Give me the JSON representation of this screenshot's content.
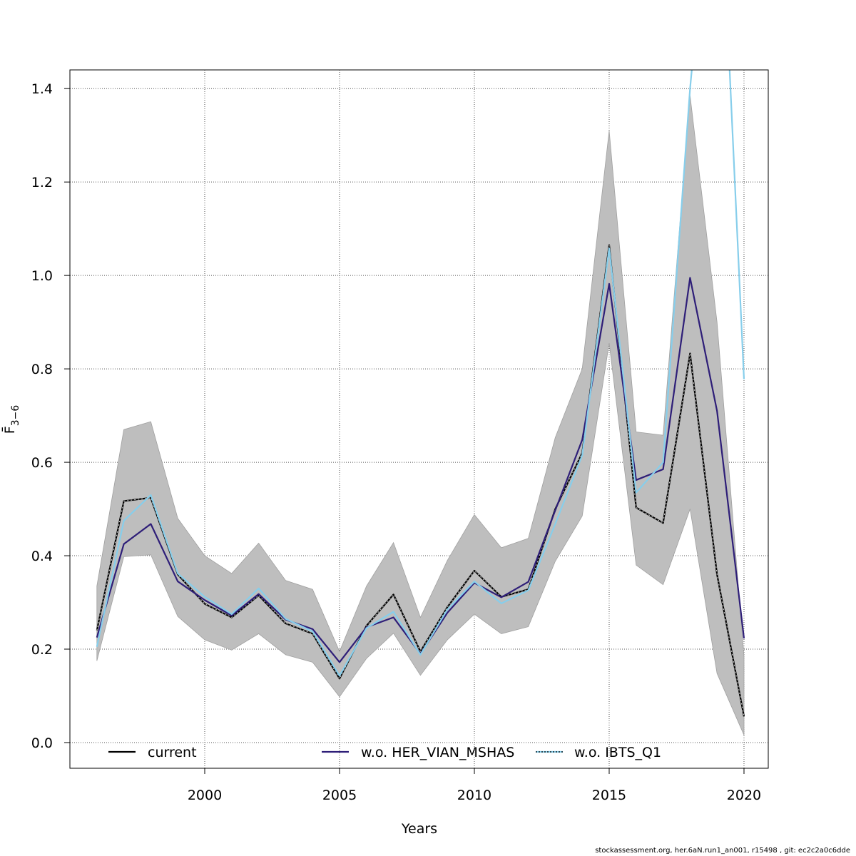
{
  "chart_data": {
    "type": "line",
    "xlabel": "Years",
    "ylabel": "F̄",
    "ylabel_subscript": "3−6",
    "xlim": [
      1995,
      2020.9
    ],
    "ylim": [
      -0.055,
      1.44
    ],
    "x_ticks": [
      2000,
      2005,
      2010,
      2015,
      2020
    ],
    "x_tick_labels": [
      "2000",
      "2005",
      "2010",
      "2015",
      "2020"
    ],
    "y_ticks": [
      0.0,
      0.2,
      0.4,
      0.6,
      0.8,
      1.0,
      1.2,
      1.4
    ],
    "y_tick_labels": [
      "0.0",
      "0.2",
      "0.4",
      "0.6",
      "0.8",
      "1.0",
      "1.2",
      "1.4"
    ],
    "grid": true,
    "legend_placement": "bottom",
    "x": [
      1996,
      1997,
      1998,
      1999,
      2000,
      2001,
      2002,
      2003,
      2004,
      2005,
      2006,
      2007,
      2008,
      2009,
      2010,
      2011,
      2012,
      2013,
      2014,
      2015,
      2016,
      2017,
      2018,
      2019,
      2020
    ],
    "band": {
      "color": "#bebebe",
      "upper": [
        0.335,
        0.67,
        0.687,
        0.48,
        0.4,
        0.362,
        0.427,
        0.347,
        0.328,
        0.195,
        0.335,
        0.428,
        0.268,
        0.39,
        0.488,
        0.417,
        0.437,
        0.653,
        0.8,
        1.31,
        0.665,
        0.658,
        1.385,
        0.9,
        0.185
      ],
      "lower": [
        0.175,
        0.398,
        0.402,
        0.27,
        0.22,
        0.198,
        0.233,
        0.188,
        0.172,
        0.098,
        0.18,
        0.234,
        0.144,
        0.22,
        0.275,
        0.233,
        0.248,
        0.388,
        0.485,
        0.855,
        0.38,
        0.338,
        0.5,
        0.148,
        0.016
      ]
    },
    "series": [
      {
        "name": "current",
        "color": "#000000",
        "values": [
          0.24,
          0.517,
          0.524,
          0.36,
          0.297,
          0.268,
          0.315,
          0.255,
          0.233,
          0.137,
          0.25,
          0.317,
          0.195,
          0.29,
          0.368,
          0.312,
          0.328,
          0.5,
          0.62,
          1.065,
          0.503,
          0.47,
          0.833,
          0.36,
          0.056
        ]
      },
      {
        "name": "w.o. HER_VIAN_MSHAS",
        "color": "#2e1e78",
        "values": [
          0.225,
          0.425,
          0.468,
          0.345,
          0.305,
          0.272,
          0.318,
          0.263,
          0.243,
          0.172,
          0.247,
          0.268,
          0.19,
          0.278,
          0.342,
          0.311,
          0.344,
          0.497,
          0.648,
          0.982,
          0.562,
          0.585,
          0.995,
          0.71,
          0.223
        ]
      },
      {
        "name": "w.o. IBTS_Q1",
        "color": "#87ceeb",
        "values": [
          0.205,
          0.475,
          0.53,
          0.362,
          0.312,
          0.275,
          0.33,
          0.265,
          0.238,
          0.143,
          0.245,
          0.28,
          0.188,
          0.285,
          0.345,
          0.298,
          0.326,
          0.468,
          0.615,
          1.058,
          0.535,
          0.6,
          1.4,
          2.02,
          0.778
        ]
      }
    ],
    "footer": "stockassessment.org, her.6aN.run1_an001, r15498 , git: ec2c2a0c6dde"
  }
}
